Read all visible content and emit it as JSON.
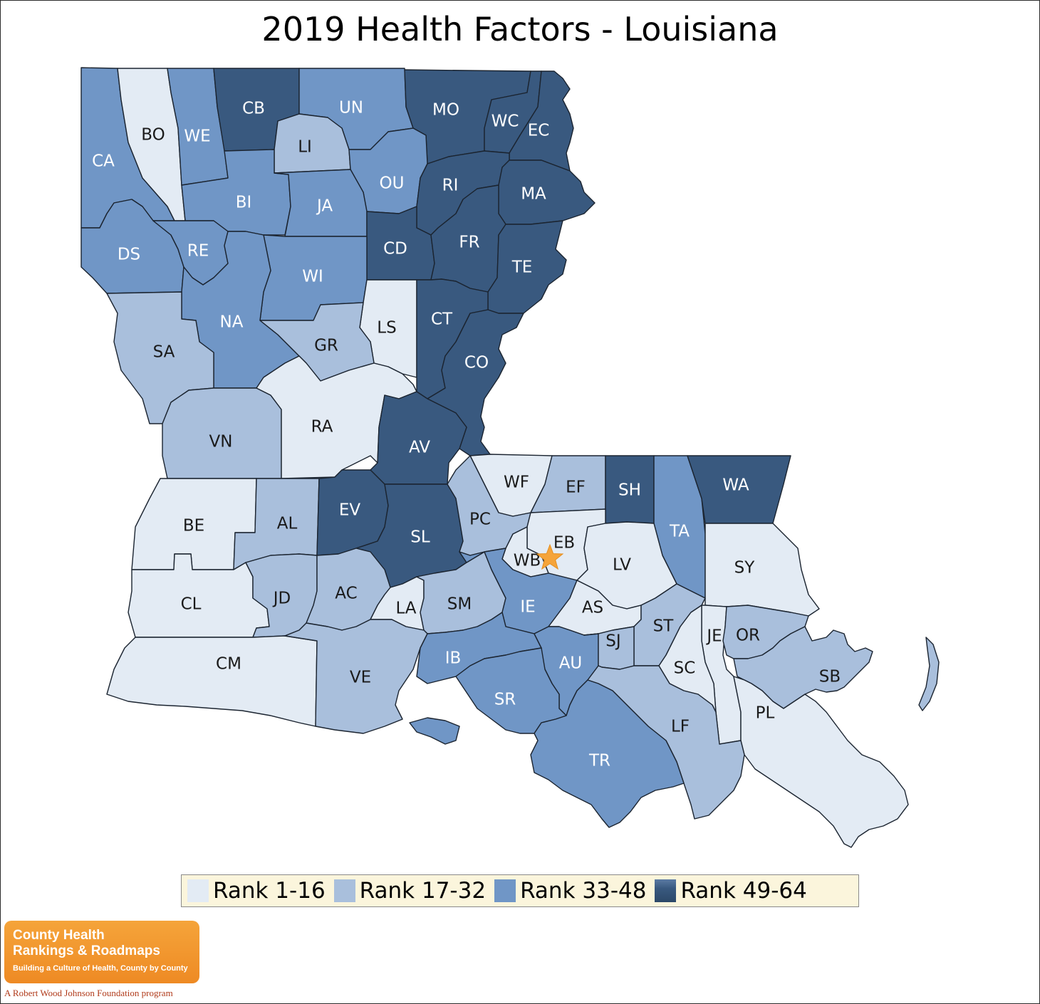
{
  "title": "2019 Health Factors - Louisiana",
  "colors": {
    "rank_1_16": "#e3ebf4",
    "rank_17_32": "#a9bfdc",
    "rank_33_48": "#7096c6",
    "rank_49_64": "#39597f",
    "highlight_star": "#f5a43a"
  },
  "legend": [
    {
      "label": "Rank 1-16",
      "bin": 1
    },
    {
      "label": "Rank 17-32",
      "bin": 2
    },
    {
      "label": "Rank 33-48",
      "bin": 3
    },
    {
      "label": "Rank 49-64",
      "bin": 4
    }
  ],
  "parishes": [
    {
      "abbr": "BO",
      "bin": 1
    },
    {
      "abbr": "WE",
      "bin": 3
    },
    {
      "abbr": "CB",
      "bin": 4
    },
    {
      "abbr": "UN",
      "bin": 3
    },
    {
      "abbr": "MO",
      "bin": 4
    },
    {
      "abbr": "WC",
      "bin": 4
    },
    {
      "abbr": "EC",
      "bin": 4
    },
    {
      "abbr": "CA",
      "bin": 3
    },
    {
      "abbr": "LI",
      "bin": 2
    },
    {
      "abbr": "OU",
      "bin": 3
    },
    {
      "abbr": "RI",
      "bin": 4
    },
    {
      "abbr": "MA",
      "bin": 4
    },
    {
      "abbr": "BI",
      "bin": 3
    },
    {
      "abbr": "JA",
      "bin": 3
    },
    {
      "abbr": "DS",
      "bin": 3
    },
    {
      "abbr": "RE",
      "bin": 3
    },
    {
      "abbr": "CD",
      "bin": 4
    },
    {
      "abbr": "FR",
      "bin": 4
    },
    {
      "abbr": "TE",
      "bin": 4
    },
    {
      "abbr": "WI",
      "bin": 3
    },
    {
      "abbr": "NA",
      "bin": 3
    },
    {
      "abbr": "LS",
      "bin": 1
    },
    {
      "abbr": "CT",
      "bin": 4
    },
    {
      "abbr": "SA",
      "bin": 2
    },
    {
      "abbr": "GR",
      "bin": 2
    },
    {
      "abbr": "CO",
      "bin": 4
    },
    {
      "abbr": "VN",
      "bin": 2
    },
    {
      "abbr": "RA",
      "bin": 1
    },
    {
      "abbr": "AV",
      "bin": 4
    },
    {
      "abbr": "WF",
      "bin": 1
    },
    {
      "abbr": "EF",
      "bin": 2
    },
    {
      "abbr": "SH",
      "bin": 4
    },
    {
      "abbr": "WA",
      "bin": 4
    },
    {
      "abbr": "BE",
      "bin": 1
    },
    {
      "abbr": "AL",
      "bin": 2
    },
    {
      "abbr": "EV",
      "bin": 4
    },
    {
      "abbr": "SL",
      "bin": 4
    },
    {
      "abbr": "PC",
      "bin": 2
    },
    {
      "abbr": "EB",
      "bin": 1
    },
    {
      "abbr": "TA",
      "bin": 3
    },
    {
      "abbr": "WB",
      "bin": 1
    },
    {
      "abbr": "LV",
      "bin": 1
    },
    {
      "abbr": "SY",
      "bin": 1
    },
    {
      "abbr": "CL",
      "bin": 1
    },
    {
      "abbr": "JD",
      "bin": 2
    },
    {
      "abbr": "AC",
      "bin": 2
    },
    {
      "abbr": "LA",
      "bin": 1
    },
    {
      "abbr": "SM",
      "bin": 2
    },
    {
      "abbr": "IE",
      "bin": 3
    },
    {
      "abbr": "AS",
      "bin": 1
    },
    {
      "abbr": "ST",
      "bin": 2
    },
    {
      "abbr": "JE",
      "bin": 1
    },
    {
      "abbr": "OR",
      "bin": 2
    },
    {
      "abbr": "CM",
      "bin": 1
    },
    {
      "abbr": "VE",
      "bin": 2
    },
    {
      "abbr": "IB",
      "bin": 3
    },
    {
      "abbr": "AU",
      "bin": 3
    },
    {
      "abbr": "SJ",
      "bin": 2
    },
    {
      "abbr": "SC",
      "bin": 1
    },
    {
      "abbr": "SB",
      "bin": 2
    },
    {
      "abbr": "SR",
      "bin": 3
    },
    {
      "abbr": "PL",
      "bin": 1
    },
    {
      "abbr": "LF",
      "bin": 2
    },
    {
      "abbr": "TR",
      "bin": 3
    }
  ],
  "logo": {
    "line1": "County Health",
    "line2": "Rankings & Roadmaps",
    "tagline": "Building a Culture of Health, County by County",
    "program": "A Robert Wood Johnson Foundation program"
  }
}
